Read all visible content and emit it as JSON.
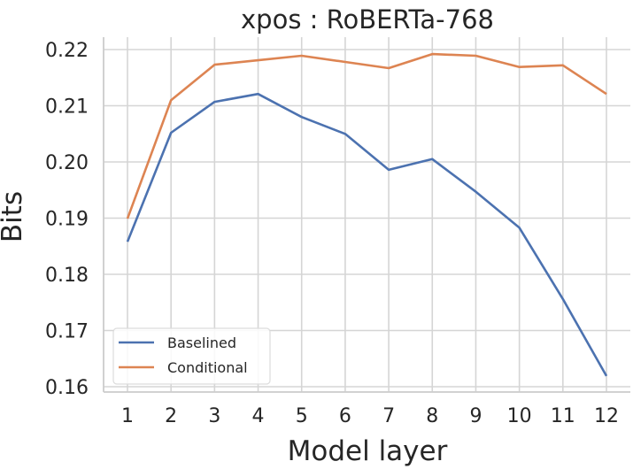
{
  "chart_data": {
    "type": "line",
    "title": "xpos : RoBERTa-768",
    "xlabel": "Model layer",
    "ylabel": "Bits",
    "x": [
      1,
      2,
      3,
      4,
      5,
      6,
      7,
      8,
      9,
      10,
      11,
      12
    ],
    "x_tick_labels": [
      "1",
      "2",
      "3",
      "4",
      "5",
      "6",
      "7",
      "8",
      "9",
      "10",
      "11",
      "12"
    ],
    "y_ticks": [
      0.16,
      0.17,
      0.18,
      0.19,
      0.2,
      0.21,
      0.22
    ],
    "y_tick_labels": [
      "0.16",
      "0.17",
      "0.18",
      "0.19",
      "0.20",
      "0.21",
      "0.22"
    ],
    "ylim": [
      0.159,
      0.2422
    ],
    "xlim": [
      0.45,
      12.55
    ],
    "grid": true,
    "legend_position": "lower left",
    "series": [
      {
        "name": "Baselined",
        "color": "#4c72b0",
        "values": [
          0.1858,
          0.2052,
          0.2107,
          0.2121,
          0.208,
          0.205,
          0.1986,
          0.2005,
          0.1947,
          0.1883,
          0.1756,
          0.1619
        ]
      },
      {
        "name": "Conditional",
        "color": "#dd8452",
        "values": [
          0.1899,
          0.211,
          0.2173,
          0.2181,
          0.2189,
          0.2178,
          0.2167,
          0.2192,
          0.2189,
          0.2169,
          0.2172,
          0.2121
        ]
      }
    ]
  }
}
